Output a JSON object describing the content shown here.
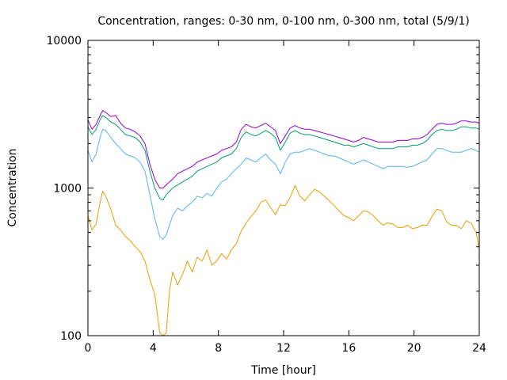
{
  "chart_data": {
    "type": "line",
    "title": "Concentration, ranges: 0-30 nm, 0-100 nm, 0-300 nm, total (5/9/1)",
    "xlabel": "Time [hour]",
    "ylabel": "Concentration",
    "xlim": [
      0,
      24
    ],
    "ylim": [
      100,
      10000
    ],
    "y_scale": "log",
    "x_ticks": [
      0,
      4,
      8,
      12,
      16,
      20,
      24
    ],
    "x_tick_labels": [
      "0",
      "4",
      "8",
      "12",
      "16",
      "20",
      "24"
    ],
    "y_ticks": [
      100,
      1000,
      10000
    ],
    "y_tick_labels": [
      "100",
      "1000",
      "10000"
    ],
    "grid": false,
    "legend": "none",
    "series": [
      {
        "color": "#e69f00",
        "x": [
          0,
          0.25,
          0.5,
          0.75,
          0.9,
          1.1,
          1.4,
          1.7,
          2.0,
          2.3,
          2.6,
          2.9,
          3.2,
          3.5,
          3.8,
          4.1,
          4.4,
          4.6,
          4.8,
          5.0,
          5.2,
          5.5,
          5.8,
          6.1,
          6.4,
          6.7,
          7.0,
          7.3,
          7.6,
          7.9,
          8.2,
          8.5,
          8.8,
          9.1,
          9.4,
          9.7,
          10.0,
          10.3,
          10.6,
          10.9,
          11.2,
          11.5,
          11.8,
          12.1,
          12.4,
          12.7,
          13.0,
          13.3,
          13.6,
          13.9,
          14.2,
          14.5,
          14.8,
          15.1,
          15.4,
          15.7,
          16.0,
          16.3,
          16.6,
          16.9,
          17.2,
          17.5,
          17.8,
          18.1,
          18.4,
          18.7,
          19.0,
          19.3,
          19.6,
          19.9,
          20.2,
          20.5,
          20.8,
          21.1,
          21.4,
          21.7,
          22.0,
          22.3,
          22.6,
          22.9,
          23.2,
          23.5,
          23.8,
          24.0
        ],
        "y": [
          650,
          520,
          570,
          800,
          950,
          880,
          720,
          560,
          520,
          470,
          440,
          400,
          370,
          320,
          240,
          190,
          105,
          100,
          104,
          200,
          270,
          220,
          260,
          320,
          270,
          340,
          320,
          380,
          300,
          320,
          360,
          330,
          380,
          420,
          510,
          580,
          640,
          700,
          800,
          830,
          740,
          660,
          770,
          760,
          860,
          1040,
          880,
          820,
          900,
          980,
          940,
          880,
          820,
          760,
          700,
          650,
          630,
          600,
          650,
          700,
          690,
          650,
          600,
          560,
          580,
          570,
          540,
          540,
          560,
          530,
          540,
          560,
          560,
          640,
          720,
          700,
          590,
          560,
          560,
          530,
          600,
          580,
          500,
          390
        ]
      },
      {
        "color": "#56b4e9",
        "x": [
          0,
          0.25,
          0.5,
          0.75,
          0.9,
          1.1,
          1.4,
          1.7,
          2.0,
          2.3,
          2.6,
          2.9,
          3.2,
          3.5,
          3.8,
          4.1,
          4.4,
          4.6,
          4.8,
          5.0,
          5.2,
          5.5,
          5.8,
          6.1,
          6.4,
          6.7,
          7.0,
          7.3,
          7.6,
          7.9,
          8.2,
          8.5,
          8.8,
          9.1,
          9.4,
          9.7,
          10.0,
          10.3,
          10.6,
          10.9,
          11.2,
          11.5,
          11.8,
          12.1,
          12.4,
          12.7,
          13.0,
          13.3,
          13.6,
          13.9,
          14.2,
          14.5,
          14.8,
          15.1,
          15.4,
          15.7,
          16.0,
          16.3,
          16.6,
          16.9,
          17.2,
          17.5,
          17.8,
          18.1,
          18.4,
          18.7,
          19.0,
          19.3,
          19.6,
          19.9,
          20.2,
          20.5,
          20.8,
          21.1,
          21.4,
          21.7,
          22.0,
          22.3,
          22.6,
          22.9,
          23.2,
          23.5,
          23.8,
          24.0
        ],
        "y": [
          1800,
          1500,
          1700,
          2200,
          2500,
          2450,
          2200,
          2000,
          1850,
          1700,
          1650,
          1600,
          1500,
          1300,
          900,
          620,
          470,
          450,
          480,
          560,
          650,
          730,
          700,
          760,
          800,
          880,
          860,
          920,
          880,
          1000,
          1100,
          1150,
          1250,
          1350,
          1450,
          1600,
          1550,
          1500,
          1600,
          1700,
          1550,
          1450,
          1250,
          1500,
          1700,
          1750,
          1750,
          1800,
          1850,
          1800,
          1750,
          1700,
          1650,
          1650,
          1600,
          1550,
          1500,
          1450,
          1500,
          1550,
          1500,
          1450,
          1400,
          1350,
          1400,
          1400,
          1400,
          1400,
          1380,
          1400,
          1450,
          1500,
          1550,
          1700,
          1850,
          1850,
          1800,
          1750,
          1750,
          1750,
          1800,
          1850,
          1800,
          1750
        ]
      },
      {
        "color": "#009e73",
        "x": [
          0,
          0.25,
          0.5,
          0.75,
          0.9,
          1.1,
          1.4,
          1.7,
          2.0,
          2.3,
          2.6,
          2.9,
          3.2,
          3.5,
          3.8,
          4.1,
          4.4,
          4.6,
          4.8,
          5.0,
          5.2,
          5.5,
          5.8,
          6.1,
          6.4,
          6.7,
          7.0,
          7.3,
          7.6,
          7.9,
          8.2,
          8.5,
          8.8,
          9.1,
          9.4,
          9.7,
          10.0,
          10.3,
          10.6,
          10.9,
          11.2,
          11.5,
          11.8,
          12.1,
          12.4,
          12.7,
          13.0,
          13.3,
          13.6,
          13.9,
          14.2,
          14.5,
          14.8,
          15.1,
          15.4,
          15.7,
          16.0,
          16.3,
          16.6,
          16.9,
          17.2,
          17.5,
          17.8,
          18.1,
          18.4,
          18.7,
          19.0,
          19.3,
          19.6,
          19.9,
          20.2,
          20.5,
          20.8,
          21.1,
          21.4,
          21.7,
          22.0,
          22.3,
          22.6,
          22.9,
          23.2,
          23.5,
          23.8,
          24.0
        ],
        "y": [
          2600,
          2300,
          2500,
          2900,
          3100,
          3000,
          2800,
          2700,
          2500,
          2300,
          2250,
          2200,
          2050,
          1800,
          1300,
          1000,
          850,
          830,
          900,
          950,
          1000,
          1050,
          1100,
          1150,
          1200,
          1300,
          1350,
          1400,
          1450,
          1500,
          1600,
          1650,
          1700,
          1850,
          2200,
          2400,
          2300,
          2250,
          2350,
          2450,
          2350,
          2200,
          1800,
          2050,
          2350,
          2450,
          2350,
          2300,
          2300,
          2250,
          2200,
          2150,
          2100,
          2050,
          2000,
          1950,
          1950,
          1900,
          1950,
          2000,
          1950,
          1900,
          1850,
          1850,
          1850,
          1850,
          1900,
          1900,
          1900,
          1950,
          1950,
          2000,
          2100,
          2300,
          2450,
          2500,
          2450,
          2450,
          2500,
          2600,
          2600,
          2550,
          2550,
          2500
        ]
      },
      {
        "color": "#9400d3",
        "x": [
          0,
          0.25,
          0.5,
          0.75,
          0.9,
          1.1,
          1.4,
          1.7,
          2.0,
          2.3,
          2.6,
          2.9,
          3.2,
          3.5,
          3.8,
          4.1,
          4.4,
          4.6,
          4.8,
          5.0,
          5.2,
          5.5,
          5.8,
          6.1,
          6.4,
          6.7,
          7.0,
          7.3,
          7.6,
          7.9,
          8.2,
          8.5,
          8.8,
          9.1,
          9.4,
          9.7,
          10.0,
          10.3,
          10.6,
          10.9,
          11.2,
          11.5,
          11.8,
          12.1,
          12.4,
          12.7,
          13.0,
          13.3,
          13.6,
          13.9,
          14.2,
          14.5,
          14.8,
          15.1,
          15.4,
          15.7,
          16.0,
          16.3,
          16.6,
          16.9,
          17.2,
          17.5,
          17.8,
          18.1,
          18.4,
          18.7,
          19.0,
          19.3,
          19.6,
          19.9,
          20.2,
          20.5,
          20.8,
          21.1,
          21.4,
          21.7,
          22.0,
          22.3,
          22.6,
          22.9,
          23.2,
          23.5,
          23.8,
          24.0
        ],
        "y": [
          2900,
          2500,
          2700,
          3100,
          3350,
          3250,
          3050,
          3100,
          2750,
          2550,
          2500,
          2400,
          2250,
          2000,
          1450,
          1150,
          1000,
          1000,
          1050,
          1100,
          1150,
          1250,
          1300,
          1350,
          1400,
          1500,
          1550,
          1600,
          1650,
          1700,
          1800,
          1850,
          1900,
          2050,
          2500,
          2700,
          2600,
          2550,
          2650,
          2750,
          2600,
          2450,
          2000,
          2250,
          2550,
          2650,
          2550,
          2500,
          2500,
          2450,
          2400,
          2350,
          2300,
          2250,
          2200,
          2150,
          2100,
          2050,
          2100,
          2200,
          2150,
          2100,
          2050,
          2050,
          2050,
          2050,
          2100,
          2100,
          2100,
          2150,
          2150,
          2200,
          2300,
          2500,
          2700,
          2750,
          2700,
          2700,
          2750,
          2850,
          2850,
          2800,
          2800,
          2750
        ]
      }
    ]
  }
}
